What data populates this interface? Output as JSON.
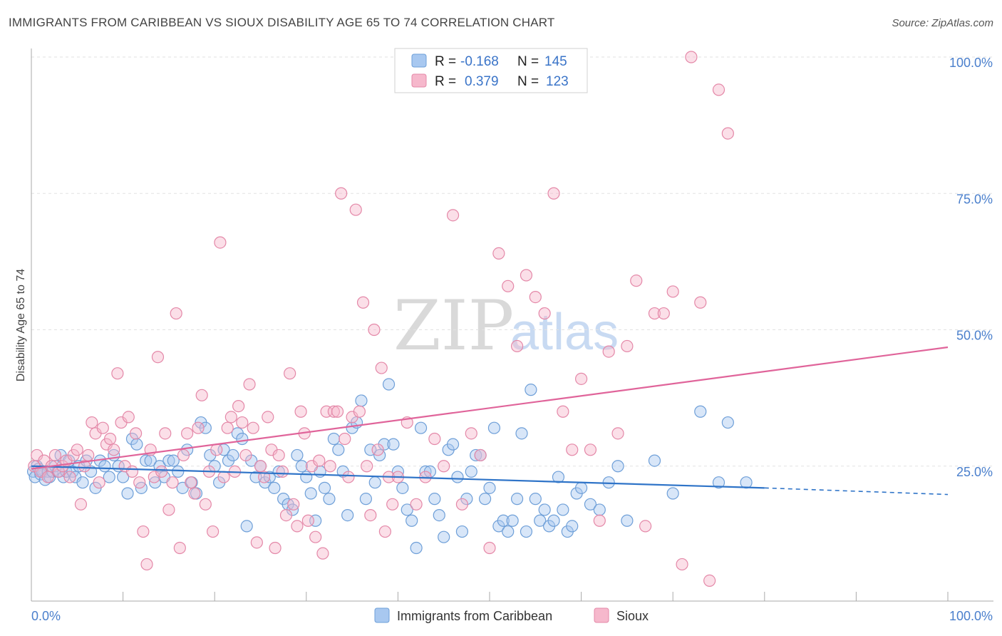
{
  "header": {
    "title": "IMMIGRANTS FROM CARIBBEAN VS SIOUX DISABILITY AGE 65 TO 74 CORRELATION CHART",
    "source": "Source: ZipAtlas.com"
  },
  "watermark": "ZIPatlas",
  "colors": {
    "blue_fill": "#a8c8f0",
    "blue_stroke": "#6e9fd8",
    "blue_line": "#2f74c8",
    "pink_fill": "#f6b8cc",
    "pink_stroke": "#e488a8",
    "pink_line": "#e0649a",
    "tick_label": "#4a7fcc",
    "grid": "#e2e2e2"
  },
  "chart_data": {
    "type": "scatter",
    "title": "IMMIGRANTS FROM CARIBBEAN VS SIOUX DISABILITY AGE 65 TO 74 CORRELATION CHART",
    "xlabel": "",
    "ylabel": "Disability Age 65 to 74",
    "xlim": [
      0,
      100
    ],
    "ylim": [
      0,
      100
    ],
    "x_tick_labels": [
      "0.0%",
      "100.0%"
    ],
    "y_ticks": [
      25,
      50,
      75,
      100
    ],
    "y_tick_labels": [
      "25.0%",
      "50.0%",
      "75.0%",
      "100.0%"
    ],
    "grid": true,
    "legend_top": [
      {
        "r_label": "R =",
        "r_value": "-0.168",
        "n_label": "N =",
        "n_value": "145"
      },
      {
        "r_label": "R =",
        "r_value": "0.379",
        "n_label": "N =",
        "n_value": "123"
      }
    ],
    "series": [
      {
        "name": "Immigrants from Caribbean",
        "color": "blue",
        "r": -0.168,
        "n": 145,
        "trend": {
          "x0": 0,
          "y0": 25.0,
          "x1": 80,
          "y1": 21.0,
          "dash_to_x": 100,
          "dash_to_y": 19.8
        },
        "points": [
          [
            0.2,
            24
          ],
          [
            0.4,
            23
          ],
          [
            0.6,
            25
          ],
          [
            0.8,
            24.5
          ],
          [
            1,
            23.5
          ],
          [
            1.2,
            24
          ],
          [
            1.5,
            22.5
          ],
          [
            1.8,
            24
          ],
          [
            2,
            23
          ],
          [
            2.3,
            24
          ],
          [
            2.6,
            25
          ],
          [
            2.9,
            24
          ],
          [
            3.2,
            27
          ],
          [
            3.5,
            23
          ],
          [
            3.8,
            24
          ],
          [
            4.1,
            26
          ],
          [
            4.5,
            24
          ],
          [
            4.8,
            23
          ],
          [
            5.2,
            25
          ],
          [
            5.6,
            22
          ],
          [
            6,
            26
          ],
          [
            6.5,
            24
          ],
          [
            7,
            21
          ],
          [
            7.5,
            26
          ],
          [
            8,
            25
          ],
          [
            8.5,
            23
          ],
          [
            9,
            27
          ],
          [
            9.5,
            25
          ],
          [
            10,
            23
          ],
          [
            10.5,
            20
          ],
          [
            11,
            30
          ],
          [
            11.5,
            29
          ],
          [
            12,
            21
          ],
          [
            12.5,
            26
          ],
          [
            13,
            26
          ],
          [
            13.5,
            22
          ],
          [
            14,
            25
          ],
          [
            14.5,
            23
          ],
          [
            15,
            26
          ],
          [
            15.5,
            26
          ],
          [
            16,
            24
          ],
          [
            16.5,
            21
          ],
          [
            17,
            28
          ],
          [
            17.5,
            22
          ],
          [
            18,
            20
          ],
          [
            18.5,
            33
          ],
          [
            19,
            32
          ],
          [
            19.5,
            27
          ],
          [
            20,
            25
          ],
          [
            20.5,
            22
          ],
          [
            21,
            28
          ],
          [
            21.5,
            26
          ],
          [
            22,
            27
          ],
          [
            22.5,
            31
          ],
          [
            23,
            30
          ],
          [
            23.5,
            14
          ],
          [
            24,
            26
          ],
          [
            24.5,
            23
          ],
          [
            25,
            25
          ],
          [
            25.5,
            22
          ],
          [
            26,
            23
          ],
          [
            26.5,
            21
          ],
          [
            27,
            24
          ],
          [
            27.5,
            19
          ],
          [
            28,
            18
          ],
          [
            28.5,
            17
          ],
          [
            29,
            27
          ],
          [
            29.5,
            25
          ],
          [
            30,
            23
          ],
          [
            30.5,
            20
          ],
          [
            31,
            15
          ],
          [
            31.5,
            24
          ],
          [
            32,
            21
          ],
          [
            32.5,
            19
          ],
          [
            33,
            30
          ],
          [
            33.5,
            28
          ],
          [
            34,
            24
          ],
          [
            34.5,
            16
          ],
          [
            35,
            32
          ],
          [
            35.5,
            33
          ],
          [
            36,
            37
          ],
          [
            36.5,
            19
          ],
          [
            37,
            28
          ],
          [
            37.5,
            22
          ],
          [
            38,
            27
          ],
          [
            38.5,
            29
          ],
          [
            39,
            40
          ],
          [
            39.5,
            29
          ],
          [
            40,
            24
          ],
          [
            40.5,
            21
          ],
          [
            41,
            17
          ],
          [
            41.5,
            15
          ],
          [
            42,
            10
          ],
          [
            42.5,
            32
          ],
          [
            43,
            24
          ],
          [
            43.5,
            24
          ],
          [
            44,
            19
          ],
          [
            44.5,
            16
          ],
          [
            45,
            12
          ],
          [
            45.5,
            28
          ],
          [
            46,
            29
          ],
          [
            46.5,
            23
          ],
          [
            47,
            13
          ],
          [
            47.5,
            19
          ],
          [
            48,
            24
          ],
          [
            48.5,
            27
          ],
          [
            49,
            27
          ],
          [
            49.5,
            19
          ],
          [
            50,
            21
          ],
          [
            50.5,
            32
          ],
          [
            51,
            14
          ],
          [
            51.5,
            15
          ],
          [
            52,
            13
          ],
          [
            52.5,
            15
          ],
          [
            53,
            19
          ],
          [
            53.5,
            31
          ],
          [
            54,
            13
          ],
          [
            54.5,
            39
          ],
          [
            55,
            19
          ],
          [
            55.5,
            15
          ],
          [
            56,
            17
          ],
          [
            56.5,
            14
          ],
          [
            57,
            15
          ],
          [
            57.5,
            23
          ],
          [
            58,
            17
          ],
          [
            58.5,
            13
          ],
          [
            59,
            14
          ],
          [
            59.5,
            20
          ],
          [
            60,
            21
          ],
          [
            61,
            18
          ],
          [
            62,
            17
          ],
          [
            63,
            22
          ],
          [
            64,
            25
          ],
          [
            65,
            15
          ],
          [
            68,
            26
          ],
          [
            70,
            20
          ],
          [
            73,
            35
          ],
          [
            75,
            22
          ],
          [
            76,
            33
          ],
          [
            78,
            22
          ]
        ]
      },
      {
        "name": "Sioux",
        "color": "pink",
        "r": 0.379,
        "n": 123,
        "trend": {
          "x0": 0,
          "y0": 24.5,
          "x1": 100,
          "y1": 46.8
        },
        "points": [
          [
            0.3,
            25
          ],
          [
            0.6,
            27
          ],
          [
            1,
            24
          ],
          [
            1.4,
            26
          ],
          [
            1.8,
            23
          ],
          [
            2.2,
            25
          ],
          [
            2.6,
            27
          ],
          [
            3,
            24
          ],
          [
            3.4,
            25
          ],
          [
            3.8,
            26
          ],
          [
            4.2,
            23
          ],
          [
            4.6,
            27
          ],
          [
            5,
            28
          ],
          [
            5.4,
            18
          ],
          [
            5.8,
            25
          ],
          [
            6.2,
            27
          ],
          [
            6.6,
            33
          ],
          [
            7,
            31
          ],
          [
            7.4,
            22
          ],
          [
            7.8,
            32
          ],
          [
            8.2,
            29
          ],
          [
            8.6,
            30
          ],
          [
            9,
            28
          ],
          [
            9.4,
            42
          ],
          [
            9.8,
            33
          ],
          [
            10.2,
            25
          ],
          [
            10.6,
            34
          ],
          [
            11,
            24
          ],
          [
            11.4,
            31
          ],
          [
            11.8,
            22
          ],
          [
            12.2,
            13
          ],
          [
            12.6,
            7
          ],
          [
            13,
            28
          ],
          [
            13.4,
            23
          ],
          [
            13.8,
            45
          ],
          [
            14.2,
            24
          ],
          [
            14.6,
            31
          ],
          [
            15,
            17
          ],
          [
            15.4,
            22
          ],
          [
            15.8,
            53
          ],
          [
            16.2,
            10
          ],
          [
            16.6,
            27
          ],
          [
            17,
            31
          ],
          [
            17.4,
            22
          ],
          [
            17.8,
            20
          ],
          [
            18.2,
            32
          ],
          [
            18.6,
            38
          ],
          [
            19,
            18
          ],
          [
            19.4,
            24
          ],
          [
            19.8,
            13
          ],
          [
            20.2,
            28
          ],
          [
            20.6,
            66
          ],
          [
            21,
            23
          ],
          [
            21.4,
            32
          ],
          [
            21.8,
            34
          ],
          [
            22.2,
            24
          ],
          [
            22.6,
            36
          ],
          [
            23,
            33
          ],
          [
            23.4,
            27
          ],
          [
            23.8,
            40
          ],
          [
            24.2,
            32
          ],
          [
            24.6,
            11
          ],
          [
            25,
            25
          ],
          [
            25.4,
            23
          ],
          [
            25.8,
            34
          ],
          [
            26.2,
            28
          ],
          [
            26.6,
            10
          ],
          [
            27,
            27
          ],
          [
            27.4,
            24
          ],
          [
            27.8,
            16
          ],
          [
            28.2,
            42
          ],
          [
            28.6,
            18
          ],
          [
            29,
            14
          ],
          [
            29.4,
            35
          ],
          [
            29.8,
            31
          ],
          [
            30.2,
            15
          ],
          [
            30.6,
            25
          ],
          [
            31,
            12
          ],
          [
            31.4,
            26
          ],
          [
            31.8,
            9
          ],
          [
            32.2,
            35
          ],
          [
            32.6,
            25
          ],
          [
            33,
            35
          ],
          [
            33.4,
            35
          ],
          [
            33.8,
            75
          ],
          [
            34.2,
            30
          ],
          [
            34.6,
            23
          ],
          [
            35,
            34
          ],
          [
            35.4,
            72
          ],
          [
            35.8,
            35
          ],
          [
            36.2,
            55
          ],
          [
            36.6,
            25
          ],
          [
            37,
            16
          ],
          [
            37.4,
            50
          ],
          [
            37.8,
            28
          ],
          [
            38.2,
            43
          ],
          [
            38.6,
            13
          ],
          [
            39,
            23
          ],
          [
            39.4,
            18
          ],
          [
            40,
            23
          ],
          [
            41,
            33
          ],
          [
            42,
            18
          ],
          [
            43,
            23
          ],
          [
            44,
            30
          ],
          [
            45,
            25
          ],
          [
            46,
            71
          ],
          [
            47,
            18
          ],
          [
            48,
            31
          ],
          [
            49,
            27
          ],
          [
            50,
            10
          ],
          [
            51,
            64
          ],
          [
            52,
            58
          ],
          [
            53,
            47
          ],
          [
            54,
            60
          ],
          [
            55,
            56
          ],
          [
            56,
            53
          ],
          [
            57,
            75
          ],
          [
            58,
            35
          ],
          [
            59,
            28
          ],
          [
            60,
            41
          ],
          [
            61,
            28
          ],
          [
            62,
            15
          ],
          [
            63,
            46
          ],
          [
            64,
            31
          ],
          [
            65,
            47
          ],
          [
            66,
            59
          ],
          [
            67,
            14
          ],
          [
            68,
            53
          ],
          [
            69,
            53
          ],
          [
            70,
            57
          ],
          [
            71,
            7
          ],
          [
            72,
            100
          ],
          [
            73,
            55
          ],
          [
            74,
            4
          ],
          [
            75,
            94
          ],
          [
            76,
            86
          ]
        ]
      }
    ]
  },
  "legend_bottom": [
    {
      "label": "Immigrants from Caribbean",
      "color": "blue"
    },
    {
      "label": "Sioux",
      "color": "pink"
    }
  ]
}
